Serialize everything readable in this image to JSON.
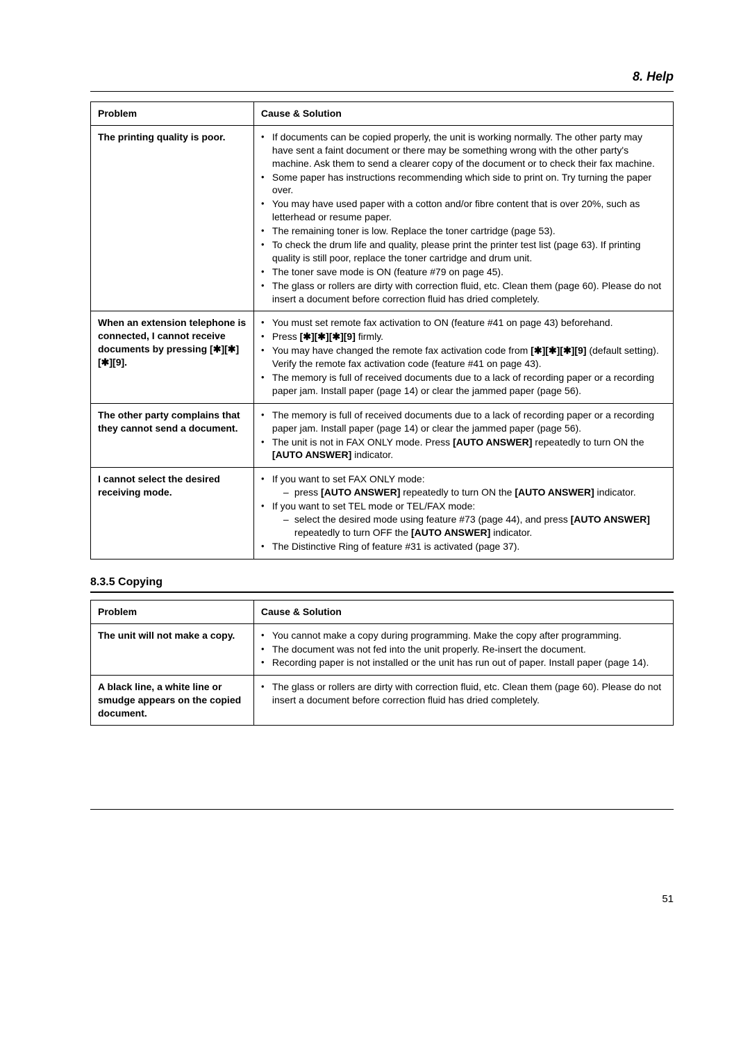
{
  "header": "8. Help",
  "table1": {
    "headers": {
      "problem": "Problem",
      "solution": "Cause & Solution"
    },
    "rows": [
      {
        "problem": "The printing quality is poor.",
        "solutions": [
          {
            "text": "If documents can be copied properly, the unit is working normally. The other party may have sent a faint document or there may be something wrong with the other party's machine. Ask them to send a clearer copy of the document or to check their fax machine."
          },
          {
            "text": "Some paper has instructions recommending which side to print on. Try turning the paper over."
          },
          {
            "text": "You may have used paper with a cotton and/or fibre content that is over 20%, such as letterhead or resume paper."
          },
          {
            "text": "The remaining toner is low. Replace the toner cartridge (page 53)."
          },
          {
            "text": "To check the drum life and quality, please print the printer test list (page 63). If printing quality is still poor, replace the toner cartridge and drum unit."
          },
          {
            "text": "The toner save mode is ON (feature #79 on page 45)."
          },
          {
            "text": "The glass or rollers are dirty with correction fluid, etc. Clean them (page 60). Please do not insert a document before correction fluid has dried completely."
          }
        ]
      },
      {
        "problem_html": "When an extension telephone is connected, I cannot receive documents by pressing <span class='b'>[✱][✱][✱][9]</span>.",
        "solutions": [
          {
            "text": "You must set remote fax activation to ON (feature #41 on page 43) beforehand."
          },
          {
            "html": "Press <span class='b'>[✱][✱][✱][9]</span> firmly."
          },
          {
            "html": "You may have changed the remote fax activation code from <span class='b'>[✱][✱][✱][9]</span> (default setting). Verify the remote fax activation code (feature #41 on page 43)."
          },
          {
            "text": "The memory is full of received documents due to a lack of recording paper or a recording paper jam. Install paper (page 14) or clear the jammed paper (page 56)."
          }
        ]
      },
      {
        "problem": "The other party complains that they cannot send a document.",
        "solutions": [
          {
            "text": "The memory is full of received documents due to a lack of recording paper or a recording paper jam. Install paper (page 14) or clear the jammed paper (page 56)."
          },
          {
            "html": "The unit is not in FAX ONLY mode. Press <span class='b'>[AUTO ANSWER]</span> repeatedly to turn ON the <span class='b'>[AUTO ANSWER]</span> indicator."
          }
        ]
      },
      {
        "problem": "I cannot select the desired receiving mode.",
        "solutions": [
          {
            "html": "If you want to set FAX ONLY mode:",
            "sub": [
              {
                "html": "press <span class='b'>[AUTO ANSWER]</span> repeatedly to turn ON the <span class='b'>[AUTO ANSWER]</span> indicator."
              }
            ]
          },
          {
            "html": "If you want to set TEL mode or TEL/FAX mode:",
            "sub": [
              {
                "html": "select the desired mode using feature #73 (page 44), and press <span class='b'>[AUTO ANSWER]</span> repeatedly to turn OFF the <span class='b'>[AUTO ANSWER]</span> indicator."
              }
            ]
          },
          {
            "text": "The Distinctive Ring of feature #31 is activated (page 37)."
          }
        ]
      }
    ]
  },
  "subheading": "8.3.5 Copying",
  "table2": {
    "headers": {
      "problem": "Problem",
      "solution": "Cause & Solution"
    },
    "rows": [
      {
        "problem": "The unit will not make a copy.",
        "solutions": [
          {
            "text": "You cannot make a copy during programming. Make the copy after programming."
          },
          {
            "text": "The document was not fed into the unit properly. Re-insert the document."
          },
          {
            "text": "Recording paper is not installed or the unit has run out of paper. Install paper (page 14)."
          }
        ]
      },
      {
        "problem": "A black line, a white line or smudge appears on the copied document.",
        "solutions": [
          {
            "text": "The glass or rollers are dirty with correction fluid, etc. Clean them (page 60). Please do not insert a document before correction fluid has dried completely."
          }
        ]
      }
    ]
  },
  "pageNumber": "51"
}
